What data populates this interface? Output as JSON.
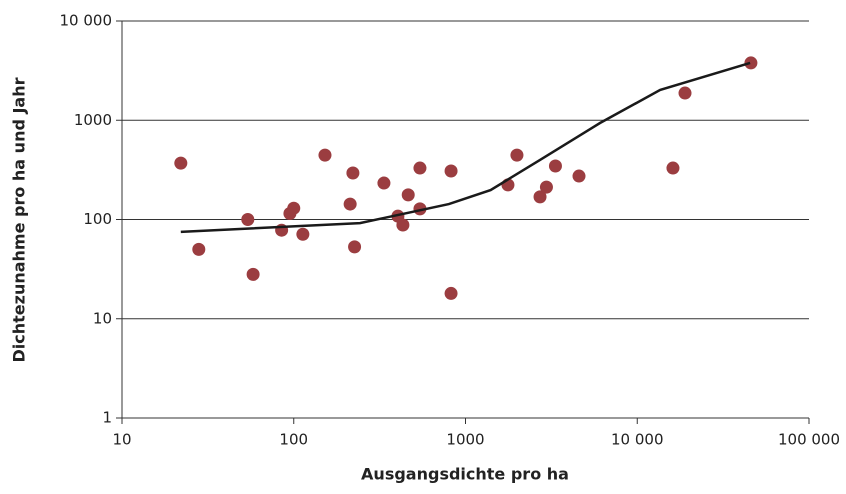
{
  "chart_data": {
    "type": "scatter",
    "x_label": "Ausgangsdichte pro ha",
    "y_label": "Dichtezunahme pro ha und Jahr",
    "x_log": true,
    "y_log": true,
    "grid": true,
    "xlim": [
      10,
      100000
    ],
    "ylim": [
      1,
      10000
    ],
    "xticks": [
      10,
      100,
      1000,
      {
        "value": 10000,
        "label": "10 000"
      },
      {
        "value": 100000,
        "label": "100 000"
      }
    ],
    "yticks": [
      1,
      10,
      100,
      1000,
      {
        "value": 10000,
        "label": "10 000"
      }
    ],
    "series": [
      {
        "type": "scatter",
        "color": "#9b3d40",
        "x": [
          22,
          28,
          54,
          58,
          85,
          95,
          100,
          113,
          152,
          213,
          221,
          226,
          335,
          404,
          432,
          464,
          543,
          543,
          824,
          824,
          1767,
          1993,
          2716,
          2960,
          3340,
          4580,
          16140,
          18970,
          45900
        ],
        "values": [
          370,
          50,
          100,
          28,
          78,
          115,
          130,
          71,
          445,
          143,
          294,
          53,
          233,
          108,
          88,
          177,
          330,
          128,
          308,
          18,
          223,
          445,
          169,
          212,
          346,
          274,
          330,
          1880,
          3780
        ]
      },
      {
        "type": "line",
        "color": "#1a1a1a",
        "x": [
          22,
          243,
          800,
          1400,
          2716,
          6070,
          13600,
          45400
        ],
        "values": [
          75,
          92,
          143,
          198,
          398,
          938,
          2020,
          3780
        ]
      }
    ]
  }
}
